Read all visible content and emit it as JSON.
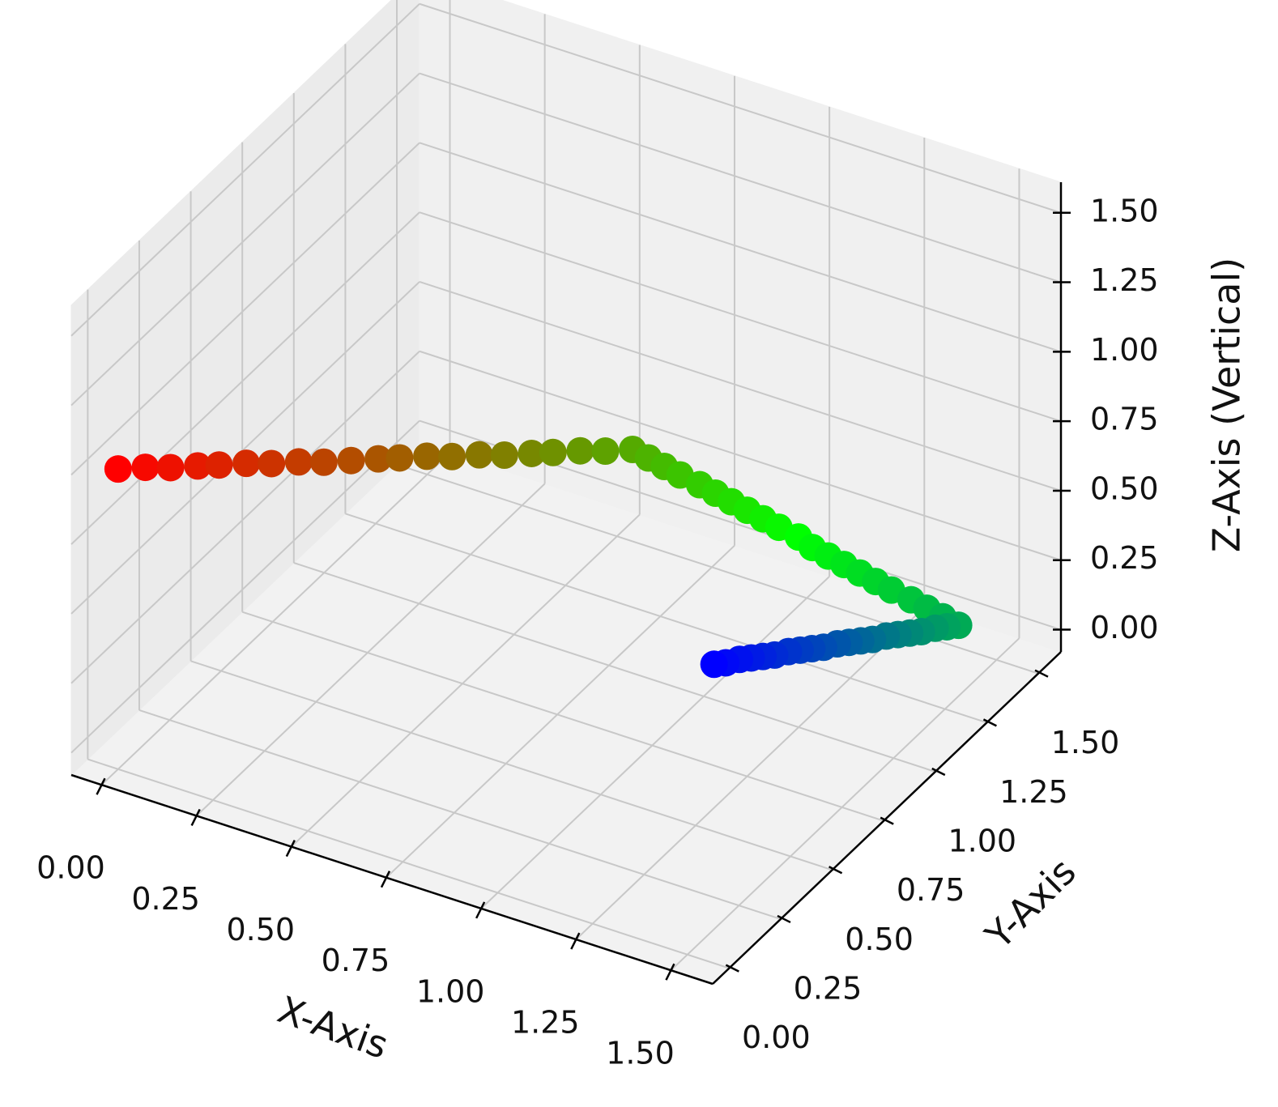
{
  "chart_data": {
    "type": "scatter3d",
    "xlabel": "X-Axis",
    "ylabel": "Y-Axis",
    "zlabel": "Z-Axis (Vertical)",
    "colormap": [
      "#ff0000",
      "#00ff00",
      "#0000ff"
    ],
    "x": [
      0,
      0.05,
      0.1,
      0.15,
      0.19,
      0.24,
      0.29,
      0.34,
      0.39,
      0.44,
      0.49,
      0.53,
      0.58,
      0.63,
      0.68,
      0.73,
      0.78,
      0.82,
      0.87,
      0.92,
      0.97,
      0.99,
      1.01,
      1.03,
      1.06,
      1.08,
      1.1,
      1.12,
      1.14,
      1.16,
      1.19,
      1.21,
      1.23,
      1.25,
      1.27,
      1.29,
      1.31,
      1.34,
      1.36,
      1.38,
      1.4,
      1.38,
      1.36,
      1.34,
      1.32,
      1.3,
      1.28,
      1.26,
      1.24,
      1.22,
      1.2,
      1.18,
      1.16,
      1.14,
      1.12,
      1.1,
      1.08,
      1.06,
      1.04,
      1.02,
      1.0
    ],
    "y": [
      0,
      0.04,
      0.07,
      0.11,
      0.14,
      0.18,
      0.21,
      0.25,
      0.28,
      0.32,
      0.36,
      0.39,
      0.43,
      0.46,
      0.5,
      0.53,
      0.57,
      0.6,
      0.64,
      0.67,
      0.71,
      0.75,
      0.79,
      0.83,
      0.87,
      0.91,
      0.95,
      0.99,
      1.03,
      1.07,
      1.11,
      1.14,
      1.18,
      1.22,
      1.26,
      1.3,
      1.34,
      1.38,
      1.42,
      1.46,
      1.5,
      1.48,
      1.46,
      1.43,
      1.41,
      1.39,
      1.37,
      1.34,
      1.32,
      1.3,
      1.28,
      1.25,
      1.23,
      1.21,
      1.19,
      1.16,
      1.14,
      1.12,
      1.1,
      1.07,
      1.05
    ],
    "z": [
      1,
      1,
      1,
      1,
      1,
      1,
      1,
      1,
      1,
      1,
      1,
      1,
      1,
      1,
      1,
      1,
      1,
      1,
      1,
      1,
      1,
      0.95,
      0.9,
      0.85,
      0.8,
      0.75,
      0.7,
      0.65,
      0.6,
      0.55,
      0.5,
      0.45,
      0.4,
      0.35,
      0.3,
      0.25,
      0.2,
      0.15,
      0.1,
      0.05,
      0,
      0,
      0,
      0,
      0,
      0,
      0,
      0,
      0,
      0,
      0,
      0,
      0,
      0,
      0,
      0,
      0,
      0,
      0,
      0,
      0
    ],
    "xlim": [
      -0.08,
      1.61
    ],
    "ylim": [
      -0.08,
      1.61
    ],
    "zlim": [
      -0.08,
      1.61
    ],
    "xticks": [
      {
        "value": 0,
        "label": "0.00"
      },
      {
        "value": 0.25,
        "label": "0.25"
      },
      {
        "value": 0.5,
        "label": "0.50"
      },
      {
        "value": 0.75,
        "label": "0.75"
      },
      {
        "value": 1,
        "label": "1.00"
      },
      {
        "value": 1.25,
        "label": "1.25"
      },
      {
        "value": 1.5,
        "label": "1.50"
      }
    ],
    "yticks": [
      {
        "value": 0,
        "label": "0.00"
      },
      {
        "value": 0.25,
        "label": "0.25"
      },
      {
        "value": 0.5,
        "label": "0.50"
      },
      {
        "value": 0.75,
        "label": "0.75"
      },
      {
        "value": 1,
        "label": "1.00"
      },
      {
        "value": 1.25,
        "label": "1.25"
      },
      {
        "value": 1.5,
        "label": "1.50"
      }
    ],
    "zticks": [
      {
        "value": 0,
        "label": "0.00"
      },
      {
        "value": 0.25,
        "label": "0.25"
      },
      {
        "value": 0.5,
        "label": "0.50"
      },
      {
        "value": 0.75,
        "label": "0.75"
      },
      {
        "value": 1,
        "label": "1.00"
      },
      {
        "value": 1.25,
        "label": "1.25"
      },
      {
        "value": 1.5,
        "label": "1.50"
      }
    ],
    "grid": true
  }
}
